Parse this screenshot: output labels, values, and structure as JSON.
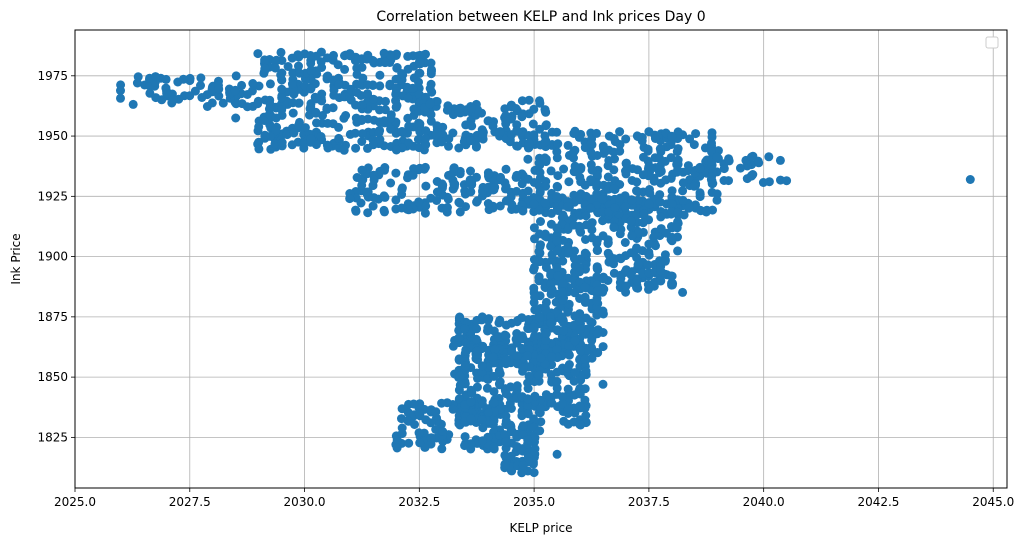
{
  "chart_data": {
    "type": "scatter",
    "title": "Correlation between KELP and Ink prices Day 0",
    "xlabel": "KELP price",
    "ylabel": "Ink Price",
    "xlim": [
      2025.0,
      2045.3
    ],
    "ylim": [
      1804.0,
      1994.0
    ],
    "x_ticks": [
      2025.0,
      2027.5,
      2030.0,
      2032.5,
      2035.0,
      2037.5,
      2040.0,
      2042.5,
      2045.0
    ],
    "x_tick_labels": [
      "2025.0",
      "2027.5",
      "2030.0",
      "2032.5",
      "2035.0",
      "2037.5",
      "2040.0",
      "2042.5",
      "2045.0"
    ],
    "y_ticks": [
      1825,
      1850,
      1875,
      1900,
      1925,
      1950,
      1975
    ],
    "y_tick_labels": [
      "1825",
      "1850",
      "1875",
      "1900",
      "1925",
      "1950",
      "1975"
    ],
    "grid": true,
    "legend": "top-right (empty)",
    "marker_color": "#1f77b4",
    "clusters": [
      {
        "x": [
          2026.0,
          2029.0
        ],
        "y": [
          1962,
          1975
        ],
        "n": 70
      },
      {
        "x": [
          2029.0,
          2032.8
        ],
        "y": [
          1944,
          1985
        ],
        "n": 380
      },
      {
        "x": [
          2032.5,
          2035.3
        ],
        "y": [
          1945,
          1965
        ],
        "n": 120
      },
      {
        "x": [
          2031.0,
          2035.2
        ],
        "y": [
          1918,
          1937
        ],
        "n": 160
      },
      {
        "x": [
          2034.8,
          2039.0
        ],
        "y": [
          1918,
          1952
        ],
        "n": 300
      },
      {
        "x": [
          2038.6,
          2040.6
        ],
        "y": [
          1930,
          1942
        ],
        "n": 30
      },
      {
        "x": [
          2035.0,
          2038.2
        ],
        "y": [
          1885,
          1925
        ],
        "n": 340
      },
      {
        "x": [
          2035.0,
          2036.5
        ],
        "y": [
          1860,
          1890
        ],
        "n": 150
      },
      {
        "x": [
          2033.3,
          2035.6
        ],
        "y": [
          1855,
          1875
        ],
        "n": 140
      },
      {
        "x": [
          2033.3,
          2036.2
        ],
        "y": [
          1830,
          1862
        ],
        "n": 280
      },
      {
        "x": [
          2032.0,
          2034.3
        ],
        "y": [
          1820,
          1840
        ],
        "n": 110
      },
      {
        "x": [
          2034.3,
          2035.1
        ],
        "y": [
          1810,
          1830
        ],
        "n": 70
      }
    ],
    "outliers": [
      {
        "x": 2044.5,
        "y": 1932
      },
      {
        "x": 2036.5,
        "y": 1847
      },
      {
        "x": 2040.5,
        "y": 1931.5
      },
      {
        "x": 2028.5,
        "y": 1957.5
      },
      {
        "x": 2035.5,
        "y": 1818
      }
    ]
  }
}
